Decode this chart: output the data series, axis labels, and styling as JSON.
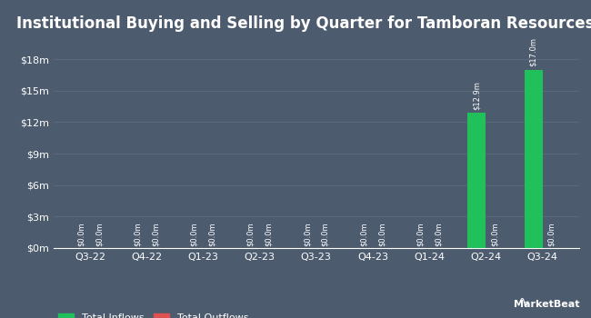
{
  "title": "Institutional Buying and Selling by Quarter for Tamboran Resources",
  "quarters": [
    "Q3-22",
    "Q4-22",
    "Q1-23",
    "Q2-23",
    "Q3-23",
    "Q4-23",
    "Q1-24",
    "Q2-24",
    "Q3-24"
  ],
  "inflows": [
    0.0,
    0.0,
    0.0,
    0.0,
    0.0,
    0.0,
    0.0,
    12.9,
    17.0
  ],
  "outflows": [
    0.0,
    0.0,
    0.0,
    0.0,
    0.0,
    0.0,
    0.0,
    0.0,
    0.0
  ],
  "inflow_labels": [
    "$0.0m",
    "$0.0m",
    "$0.0m",
    "$0.0m",
    "$0.0m",
    "$0.0m",
    "$0.0m",
    "$12.9m",
    "$17.0m"
  ],
  "outflow_labels": [
    "$0.0m",
    "$0.0m",
    "$0.0m",
    "$0.0m",
    "$0.0m",
    "$0.0m",
    "$0.0m",
    "$0.0m",
    "$0.0m"
  ],
  "inflow_color": "#20c05a",
  "outflow_color": "#e05252",
  "background_color": "#4d5b6e",
  "grid_color": "#5d6b7e",
  "text_color": "#ffffff",
  "title_fontsize": 12,
  "tick_fontsize": 8,
  "label_fontsize": 6,
  "bar_width": 0.32,
  "ylim": [
    0,
    20
  ],
  "yticks": [
    0,
    3,
    6,
    9,
    12,
    15,
    18
  ],
  "ytick_labels": [
    "$0m",
    "$3m",
    "$6m",
    "$9m",
    "$12m",
    "$15m",
    "$18m"
  ],
  "legend_inflow": "Total Inflows",
  "legend_outflow": "Total Outflows"
}
